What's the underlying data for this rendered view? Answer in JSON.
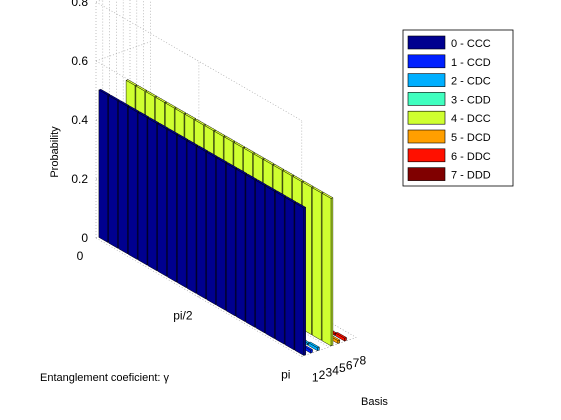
{
  "chart_data": {
    "type": "bar3d",
    "title": "",
    "zlabel": "Probability",
    "xlabel": "Basis",
    "ylabel": "Entanglement coeficient: γ",
    "zlim": [
      0,
      0.8
    ],
    "z_ticks": [
      "0",
      "0.2",
      "0.4",
      "0.6",
      "0.8"
    ],
    "y_ticks": [
      "0",
      "pi/2",
      "pi"
    ],
    "x_ticks": [
      "1",
      "2",
      "3",
      "4",
      "5",
      "6",
      "7",
      "8"
    ],
    "gamma_steps": 21,
    "grid": true,
    "legend_position": "top-right",
    "series": [
      {
        "name": "0 - CCC",
        "color": "#00008f",
        "values": [
          0.5,
          0.5,
          0.5,
          0.5,
          0.5,
          0.5,
          0.5,
          0.5,
          0.5,
          0.5,
          0.5,
          0.5,
          0.5,
          0.5,
          0.5,
          0.5,
          0.5,
          0.5,
          0.5,
          0.5,
          0.5
        ]
      },
      {
        "name": "1 - CCD",
        "color": "#0020ff",
        "values": [
          0,
          0,
          0,
          0,
          0,
          0,
          0,
          0,
          0,
          0,
          0,
          0,
          0,
          0,
          0,
          0,
          0,
          0,
          0.003,
          0.006,
          0.01
        ]
      },
      {
        "name": "2 - CDC",
        "color": "#00afff",
        "values": [
          0,
          0,
          0,
          0,
          0,
          0,
          0,
          0,
          0,
          0,
          0,
          0,
          0,
          0,
          0,
          0,
          0,
          0,
          0.003,
          0.006,
          0.01
        ]
      },
      {
        "name": "3 - CDD",
        "color": "#40ffbf",
        "values": [
          0,
          0,
          0,
          0,
          0,
          0,
          0,
          0,
          0,
          0,
          0,
          0,
          0,
          0,
          0,
          0,
          0,
          0,
          0,
          0,
          0
        ]
      },
      {
        "name": "4 - DCC",
        "color": "#cfff30",
        "values": [
          0.5,
          0.5,
          0.5,
          0.5,
          0.5,
          0.5,
          0.5,
          0.5,
          0.5,
          0.5,
          0.5,
          0.5,
          0.5,
          0.5,
          0.5,
          0.5,
          0.5,
          0.5,
          0.5,
          0.5,
          0.5
        ]
      },
      {
        "name": "5 - DCD",
        "color": "#ff9f00",
        "values": [
          0,
          0,
          0,
          0,
          0,
          0,
          0,
          0,
          0,
          0,
          0,
          0,
          0,
          0,
          0,
          0,
          0,
          0,
          0.003,
          0.006,
          0.01
        ]
      },
      {
        "name": "6 - DDC",
        "color": "#ff1000",
        "values": [
          0,
          0,
          0,
          0,
          0,
          0,
          0,
          0,
          0,
          0,
          0,
          0,
          0,
          0,
          0,
          0,
          0,
          0,
          0.003,
          0.006,
          0.01
        ]
      },
      {
        "name": "7 - DDD",
        "color": "#800000",
        "values": [
          0,
          0,
          0,
          0,
          0,
          0,
          0,
          0,
          0,
          0,
          0,
          0,
          0,
          0,
          0,
          0,
          0,
          0,
          0,
          0,
          0
        ]
      }
    ]
  }
}
